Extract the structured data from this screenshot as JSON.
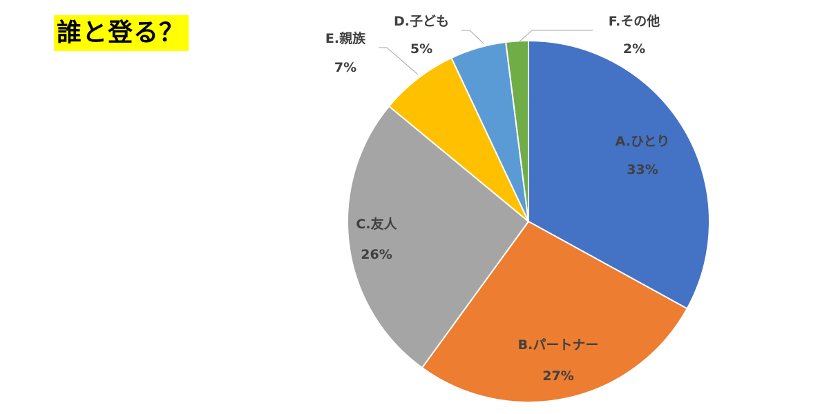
{
  "title": "誰と登る？",
  "chart_data": {
    "type": "pie",
    "title": "誰と登る？",
    "slices": [
      {
        "name": "A.ひとり",
        "label": "33%",
        "value": 33,
        "color": "#4472c4"
      },
      {
        "name": "B.パートナー",
        "label": "27%",
        "value": 27,
        "color": "#ed7d31"
      },
      {
        "name": "C.友人",
        "label": "26%",
        "value": 26,
        "color": "#a5a5a5"
      },
      {
        "name": "E.親族",
        "label": "7%",
        "value": 7,
        "color": "#ffc000"
      },
      {
        "name": "D.子ども",
        "label": "5%",
        "value": 5,
        "color": "#5b9bd5"
      },
      {
        "name": "F.その他",
        "label": "2%",
        "value": 2,
        "color": "#70ad47"
      }
    ],
    "start": "12 o'clock",
    "direction": "clockwise",
    "legend": "none",
    "data_labels": "category name and percentage"
  }
}
